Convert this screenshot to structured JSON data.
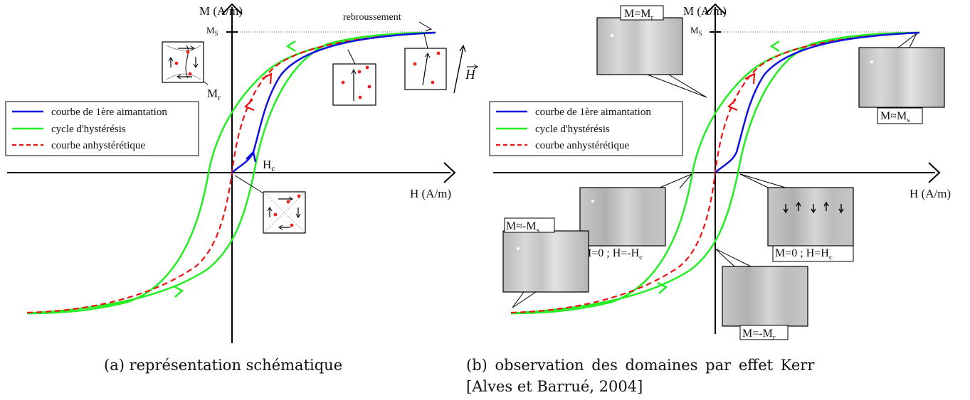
{
  "left": {
    "axis_y_label": "M (A/m)",
    "axis_x_label": "H (A/m)",
    "ms_label": "M",
    "ms_sub": "S",
    "mr_label": "M",
    "mr_sub": "r",
    "hc_label": "H",
    "hc_sub": "c",
    "rebroussement": "rebroussement",
    "field_label": "H",
    "caption": "(a) représentation schématique"
  },
  "right": {
    "axis_y_label": "M (A/m)",
    "axis_x_label": "H (A/m)",
    "ms_label": "M",
    "ms_sub": "S",
    "box_mr": "M=M",
    "box_mr_sub": "r",
    "box_ms": "M≈M",
    "box_ms_sub": "s",
    "box_neg_ms": "M≈-M",
    "box_neg_ms_sub": "s",
    "box_m0_hneg": "M=0 ; H=-H",
    "box_m0_hneg_sub": "c",
    "box_m0_hpos": "M=0 ; H=H",
    "box_m0_hpos_sub": "c",
    "box_neg_mr": "M=-M",
    "box_neg_mr_sub": "r",
    "caption_line1": "(b) observation des domaines par effet Kerr",
    "caption_line2": "[Alves et Barrué, 2004]"
  },
  "legend": {
    "first_magnetization": "courbe de 1ère aimantation",
    "hysteresis": "cycle d'hystérésis",
    "anhysteretic": "courbe anhystérétique"
  },
  "colors": {
    "first_magnetization": "#1010e0",
    "hysteresis": "#22ee22",
    "anhysteretic": "#ee1111",
    "domain_dot": "#ee2222"
  }
}
